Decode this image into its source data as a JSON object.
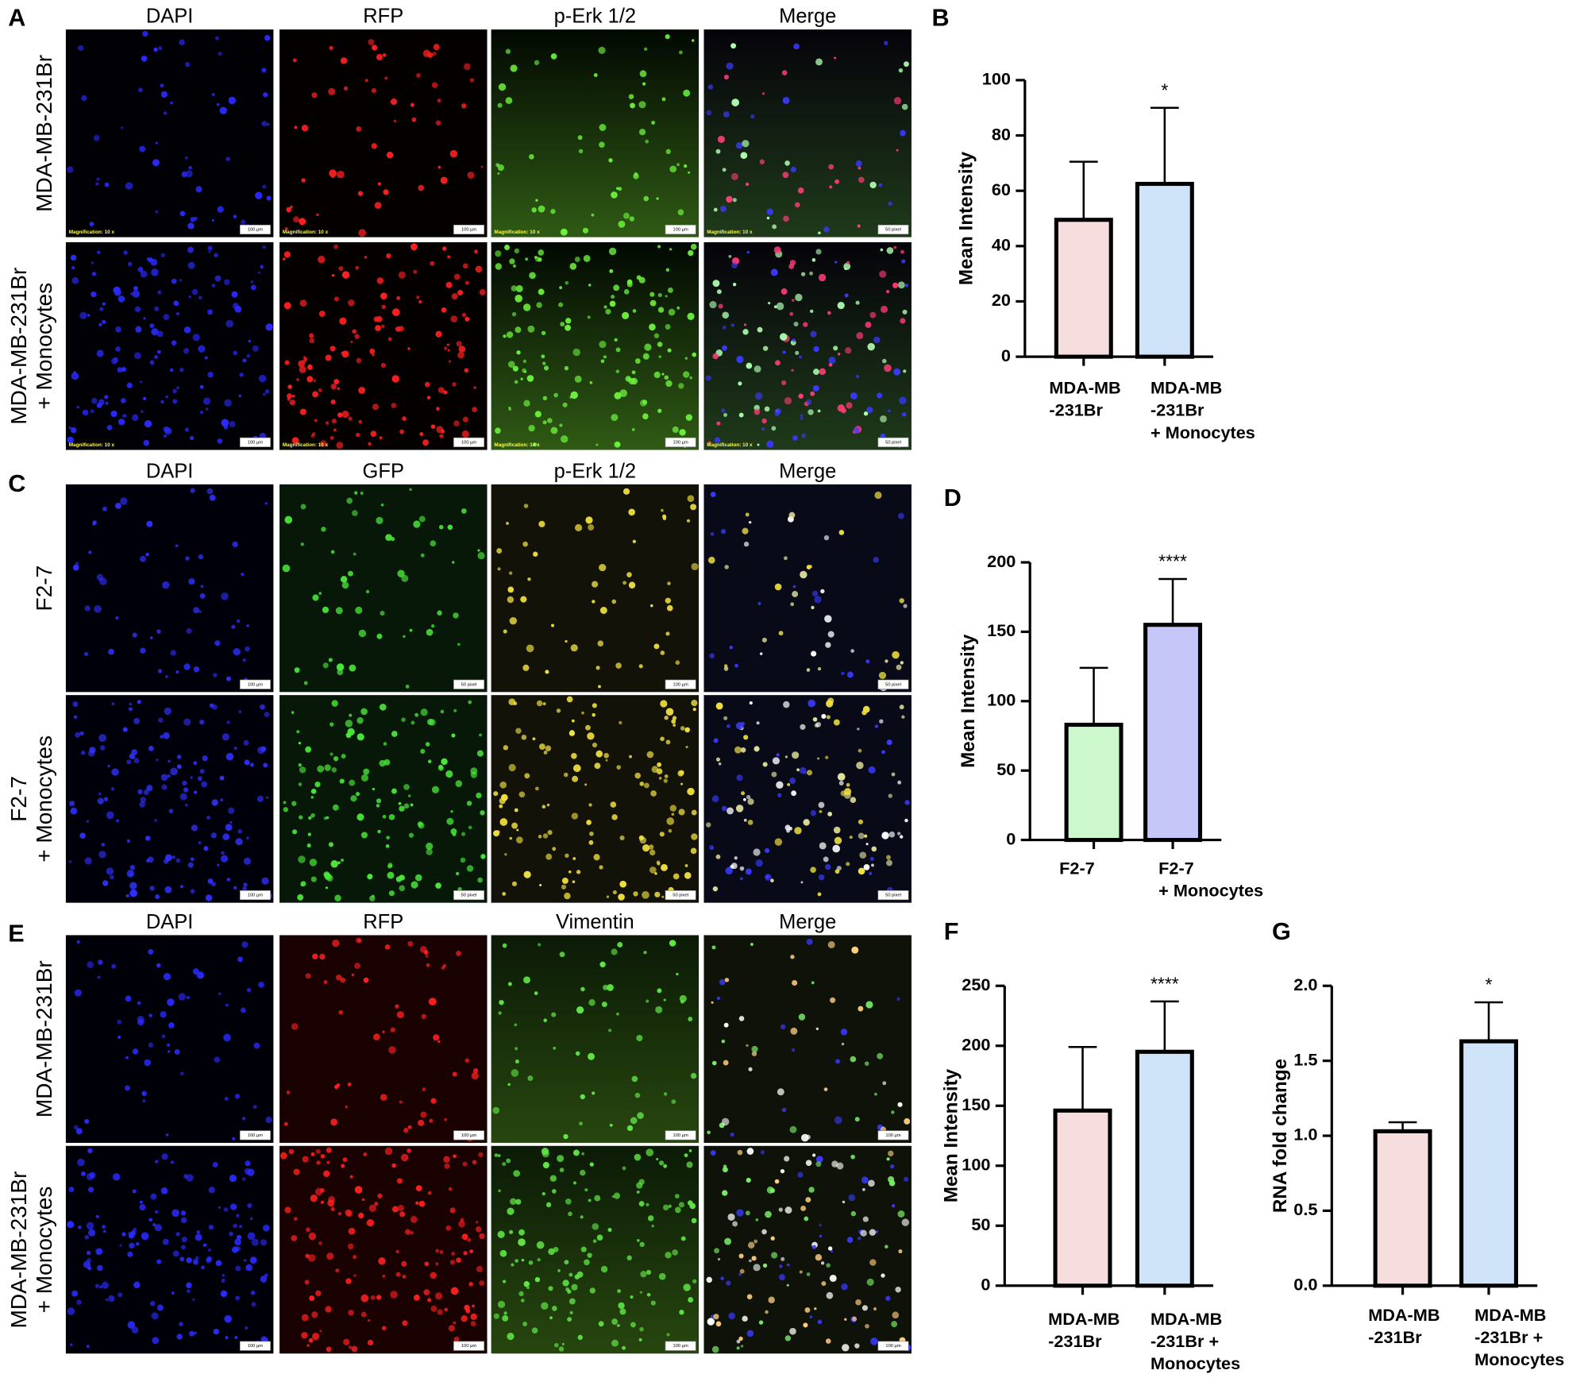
{
  "image_panels": [
    {
      "letter": "A",
      "columns": [
        "DAPI",
        "RFP",
        "p-Erk 1/2",
        "Merge"
      ],
      "rows": [
        {
          "label": [
            "MDA-MB-231Br"
          ],
          "scale_labels": [
            "100 µm",
            "100 µm",
            "100 µm",
            "50 pixel"
          ],
          "magnification": [
            "Magnification:  10 x",
            "Magnification:  10 x",
            "Magnification:  10 x",
            "Magnification:  10 x"
          ]
        },
        {
          "label": [
            "MDA-MB-231Br",
            "+ Monocytes"
          ],
          "scale_labels": [
            "100 µm",
            "100 µm",
            "100 µm",
            "50 pixel"
          ],
          "magnification": [
            "Magnification:  10 x",
            "Magnification:  10 x",
            "Magnification:  10 x",
            "Magnification:  10 x"
          ]
        }
      ]
    },
    {
      "letter": "C",
      "columns": [
        "DAPI",
        "GFP",
        "p-Erk 1/2",
        "Merge"
      ],
      "rows": [
        {
          "label": [
            "F2-7"
          ],
          "scale_labels": [
            "100 µm",
            "50 pixel",
            "100 µm",
            "50 pixel"
          ]
        },
        {
          "label": [
            "F2-7",
            "+ Monocytes"
          ],
          "scale_labels": [
            "100 µm",
            "50 pixel",
            "50 pixel",
            "50 pixel"
          ]
        }
      ]
    },
    {
      "letter": "E",
      "columns": [
        "DAPI",
        "RFP",
        "Vimentin",
        "Merge"
      ],
      "rows": [
        {
          "label": [
            "MDA-MB-231Br"
          ],
          "scale_labels": [
            "100 µm",
            "100 µm",
            "100 µm",
            "100 µm"
          ]
        },
        {
          "label": [
            "MDA-MB-231Br",
            "+ Monocytes"
          ],
          "scale_labels": [
            "100 µm",
            "100 µm",
            "100 µm",
            "100 µm"
          ]
        }
      ]
    }
  ],
  "chart_data": [
    {
      "type": "bar",
      "letter": "B",
      "ylabel": "Mean  Intensity",
      "annotation": "*",
      "categories": [
        [
          "MDA-MB",
          "-231Br"
        ],
        [
          "MDA-MB",
          "-231Br",
          "+ Monocytes"
        ]
      ],
      "values": [
        49.5,
        62.5
      ],
      "errors": [
        21,
        27.5
      ],
      "colors": [
        "#f7dede",
        "#cfe3f9"
      ],
      "ylim": [
        0,
        100
      ],
      "yticks": [
        0,
        20,
        40,
        60,
        80,
        100
      ]
    },
    {
      "type": "bar",
      "letter": "D",
      "ylabel": "Mean  Intensity",
      "annotation": "****",
      "categories": [
        [
          "F2-7"
        ],
        [
          "F2-7",
          "+ Monocytes"
        ]
      ],
      "values": [
        83,
        155
      ],
      "errors": [
        41,
        33
      ],
      "colors": [
        "#cdf8cd",
        "#c6c6f9"
      ],
      "ylim": [
        0,
        200
      ],
      "yticks": [
        0,
        50,
        100,
        150,
        200
      ]
    },
    {
      "type": "bar",
      "letter": "F",
      "ylabel": "Mean  Intensity",
      "annotation": "****",
      "categories": [
        [
          "MDA-MB",
          "-231Br"
        ],
        [
          "MDA-MB",
          "-231Br +",
          "Monocytes"
        ]
      ],
      "values": [
        146,
        195
      ],
      "errors": [
        53,
        42
      ],
      "colors": [
        "#f7dede",
        "#cfe3f9"
      ],
      "ylim": [
        0,
        250
      ],
      "yticks": [
        0,
        50,
        100,
        150,
        200,
        250
      ]
    },
    {
      "type": "bar",
      "letter": "G",
      "ylabel": "RNA fold change",
      "annotation": "*",
      "categories": [
        [
          "MDA-MB",
          "-231Br"
        ],
        [
          "MDA-MB",
          "-231Br +",
          "Monocytes"
        ]
      ],
      "values": [
        1.03,
        1.63
      ],
      "errors": [
        0.06,
        0.26
      ],
      "colors": [
        "#f7dede",
        "#cfe3f9"
      ],
      "ylim": [
        0,
        2
      ],
      "yticks": [
        {
          "value": 0,
          "label": "0.0"
        },
        0.5,
        {
          "value": 1,
          "label": "1.0"
        },
        1.5,
        {
          "value": 2,
          "label": "2.0"
        }
      ]
    }
  ]
}
